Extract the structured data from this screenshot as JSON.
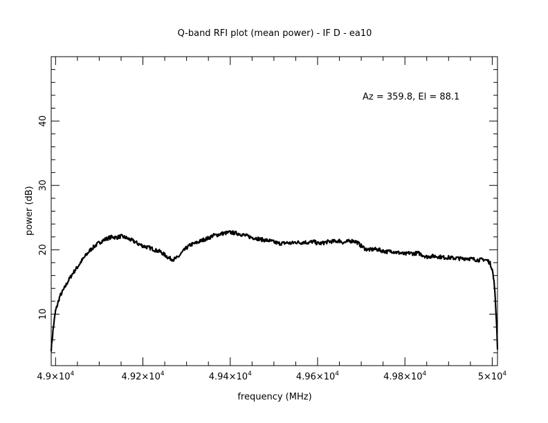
{
  "chart_data": {
    "type": "line",
    "title": "Q-band RFI plot (mean power) - IF D - ea10",
    "xlabel": "frequency (MHz)",
    "ylabel": "power (dB)",
    "annotation": "Az = 359.8, El = 88.1",
    "xlim": [
      48990,
      50012
    ],
    "ylim": [
      2,
      50
    ],
    "x_ticks": [
      {
        "value": 49000,
        "label": "4.9×10",
        "exp": "4"
      },
      {
        "value": 49200,
        "label": "4.92×10",
        "exp": "4"
      },
      {
        "value": 49400,
        "label": "4.94×10",
        "exp": "4"
      },
      {
        "value": 49600,
        "label": "4.96×10",
        "exp": "4"
      },
      {
        "value": 49800,
        "label": "4.98×10",
        "exp": "4"
      },
      {
        "value": 50000,
        "label": "5×10",
        "exp": "4"
      }
    ],
    "y_ticks": [
      {
        "value": 10,
        "label": "10"
      },
      {
        "value": 20,
        "label": "20"
      },
      {
        "value": 30,
        "label": "30"
      },
      {
        "value": 40,
        "label": "40"
      }
    ],
    "grid": false,
    "series": [
      {
        "color": "#000000",
        "x": [
          48990,
          48995,
          49000,
          49010,
          49020,
          49030,
          49040,
          49050,
          49060,
          49070,
          49080,
          49090,
          49100,
          49110,
          49120,
          49130,
          49140,
          49150,
          49160,
          49170,
          49180,
          49190,
          49200,
          49210,
          49220,
          49230,
          49240,
          49250,
          49260,
          49270,
          49280,
          49290,
          49300,
          49310,
          49320,
          49330,
          49340,
          49350,
          49360,
          49370,
          49380,
          49390,
          49400,
          49410,
          49420,
          49430,
          49440,
          49450,
          49460,
          49470,
          49480,
          49490,
          49500,
          49510,
          49520,
          49530,
          49540,
          49550,
          49560,
          49570,
          49580,
          49590,
          49600,
          49610,
          49620,
          49630,
          49640,
          49650,
          49660,
          49670,
          49680,
          49690,
          49700,
          49710,
          49720,
          49730,
          49740,
          49750,
          49760,
          49770,
          49780,
          49790,
          49800,
          49810,
          49820,
          49830,
          49840,
          49850,
          49860,
          49870,
          49880,
          49890,
          49900,
          49910,
          49920,
          49930,
          49940,
          49950,
          49960,
          49970,
          49980,
          49990,
          49995,
          50000,
          50005,
          50010,
          50012
        ],
        "y": [
          4.5,
          8.0,
          10.5,
          12.8,
          14.0,
          15.3,
          16.4,
          17.3,
          18.3,
          19.2,
          20.0,
          20.6,
          21.1,
          21.5,
          21.8,
          22.0,
          21.9,
          22.1,
          21.9,
          21.6,
          21.3,
          20.9,
          20.6,
          20.4,
          20.2,
          19.9,
          19.7,
          19.2,
          18.7,
          18.5,
          18.8,
          19.6,
          20.3,
          20.8,
          21.0,
          21.3,
          21.6,
          21.8,
          22.2,
          22.3,
          22.5,
          22.6,
          22.7,
          22.6,
          22.5,
          22.3,
          22.1,
          21.9,
          21.8,
          21.6,
          21.5,
          21.4,
          21.2,
          21.0,
          21.0,
          21.1,
          21.0,
          21.2,
          21.1,
          21.2,
          21.1,
          21.3,
          21.0,
          21.0,
          21.2,
          21.3,
          21.3,
          21.4,
          21.1,
          21.3,
          21.4,
          21.2,
          20.6,
          20.1,
          20.0,
          20.1,
          20.0,
          19.8,
          19.7,
          19.8,
          19.6,
          19.5,
          19.3,
          19.5,
          19.4,
          19.5,
          19.2,
          18.9,
          19.0,
          19.0,
          18.9,
          18.8,
          18.8,
          18.7,
          18.7,
          18.6,
          18.7,
          18.6,
          18.5,
          18.4,
          18.5,
          18.3,
          17.9,
          17.0,
          14.5,
          8.5,
          4.5
        ]
      }
    ]
  }
}
